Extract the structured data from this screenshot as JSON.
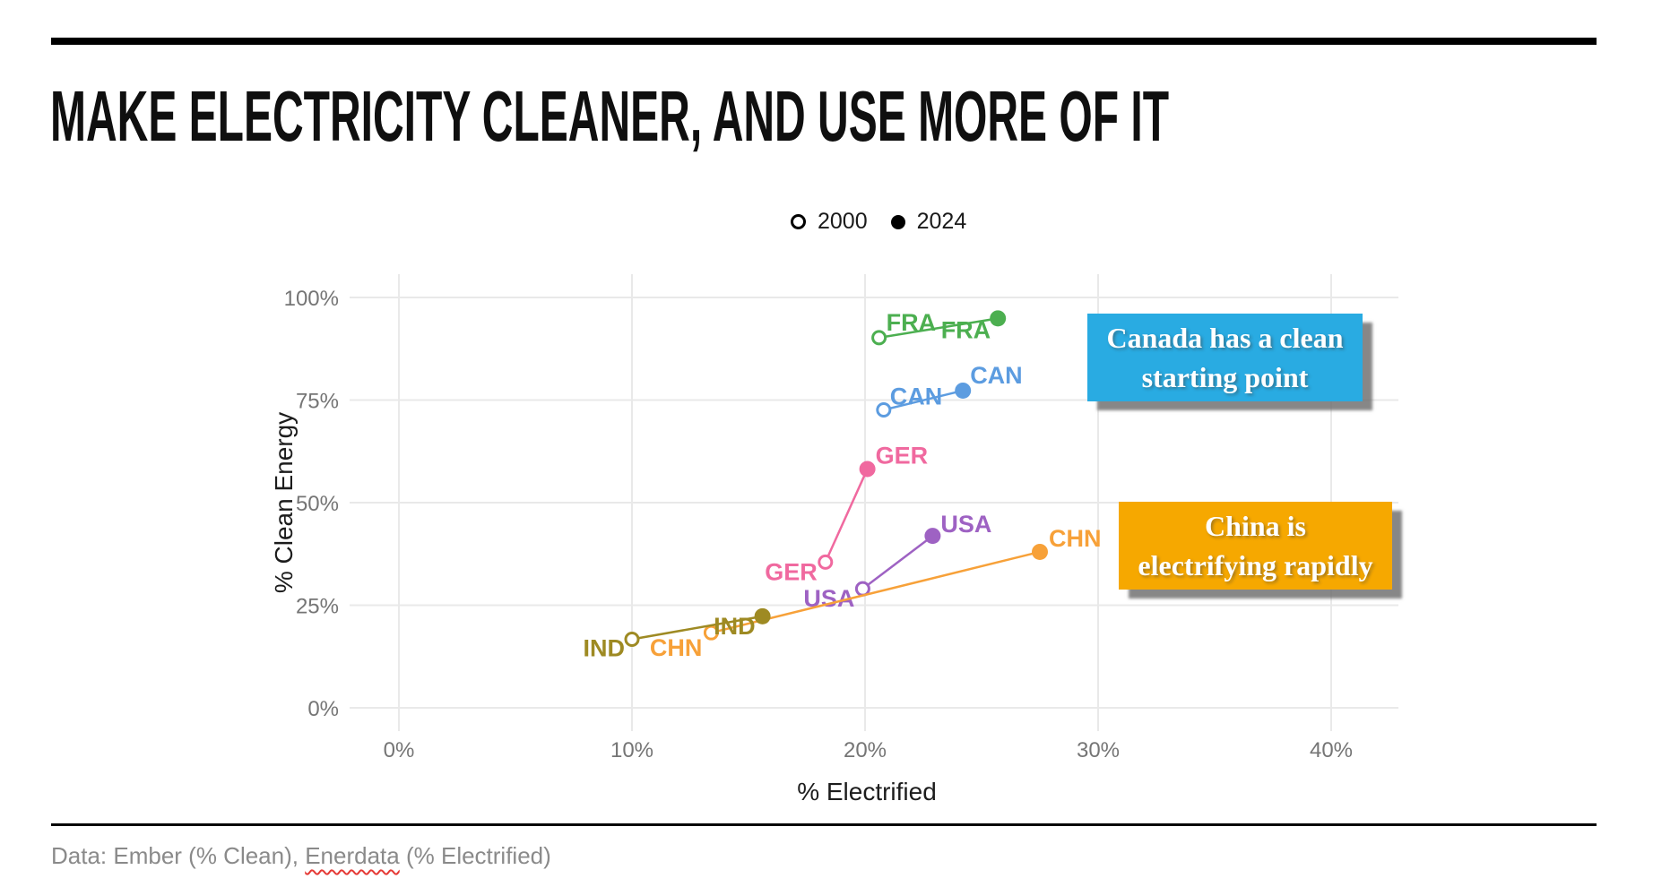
{
  "title": "MAKE ELECTRICITY CLEANER, AND USE MORE OF IT",
  "legend": {
    "items": [
      {
        "label": "2000",
        "marker": "open-circle"
      },
      {
        "label": "2024",
        "marker": "filled-circle"
      }
    ]
  },
  "annotations": [
    {
      "id": "canada",
      "line1": "Canada has a clean",
      "line2": "starting point",
      "bg": "#29ABE2"
    },
    {
      "id": "china",
      "line1": "China is",
      "line2": "electrifying rapidly",
      "bg": "#F6A800"
    }
  ],
  "footer": {
    "prefix": "Data: Ember (% Clean), ",
    "misspelled": "Enerdata",
    "suffix": " (% Electrified)"
  },
  "colors": {
    "grid": "#e9e9e9",
    "tick_text": "#757575",
    "axis_title_text": "#1c1c1c",
    "annotation_shadow": "#696969"
  },
  "chart_data": {
    "type": "scatter",
    "title": "",
    "xlabel": "% Electrified",
    "ylabel": "% Clean Energy",
    "xlim": [
      -2,
      43
    ],
    "ylim": [
      -6,
      106
    ],
    "grid": true,
    "legend_position": "top",
    "x_ticks": [
      0,
      10,
      20,
      30,
      40
    ],
    "x_tick_labels": [
      "0%",
      "10%",
      "20%",
      "30%",
      "40%"
    ],
    "y_ticks": [
      0,
      25,
      50,
      75,
      100
    ],
    "y_tick_labels": [
      "0%",
      "25%",
      "50%",
      "75%",
      "100%"
    ],
    "series": [
      {
        "name": "FRA",
        "color": "#4CAF50",
        "points": [
          {
            "year": "2000",
            "x": 20.6,
            "y": 90.2
          },
          {
            "year": "2024",
            "x": 25.7,
            "y": 94.9
          }
        ]
      },
      {
        "name": "CAN",
        "color": "#5C9CE0",
        "points": [
          {
            "year": "2000",
            "x": 20.8,
            "y": 72.6
          },
          {
            "year": "2024",
            "x": 24.2,
            "y": 77.3
          }
        ]
      },
      {
        "name": "GER",
        "color": "#F0699F",
        "points": [
          {
            "year": "2000",
            "x": 18.3,
            "y": 35.5
          },
          {
            "year": "2024",
            "x": 20.1,
            "y": 58.2
          }
        ]
      },
      {
        "name": "USA",
        "color": "#9E62C3",
        "points": [
          {
            "year": "2000",
            "x": 19.9,
            "y": 29.0
          },
          {
            "year": "2024",
            "x": 22.9,
            "y": 41.9
          }
        ]
      },
      {
        "name": "CHN",
        "color": "#F7A139",
        "points": [
          {
            "year": "2000",
            "x": 13.4,
            "y": 18.3
          },
          {
            "year": "2024",
            "x": 27.5,
            "y": 38.0
          }
        ]
      },
      {
        "name": "IND",
        "color": "#9E8A23",
        "points": [
          {
            "year": "2000",
            "x": 10.0,
            "y": 16.7
          },
          {
            "year": "2024",
            "x": 15.6,
            "y": 22.3
          }
        ]
      }
    ]
  }
}
